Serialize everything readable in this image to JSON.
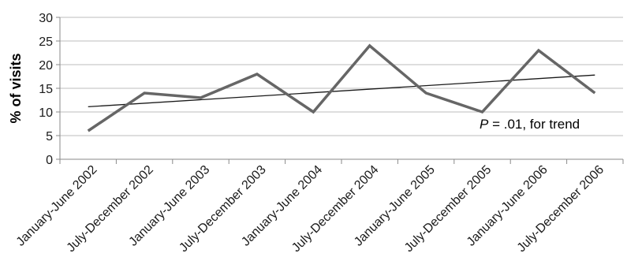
{
  "chart_data": {
    "type": "line",
    "title": "",
    "xlabel": "",
    "ylabel": "% of visits",
    "ylim": [
      0,
      30
    ],
    "yticks": [
      0,
      5,
      10,
      15,
      20,
      25,
      30
    ],
    "grid": "horizontal",
    "legend": "none",
    "categories": [
      "January-June 2002",
      "July-December 2002",
      "January-June 2003",
      "July-December 2003",
      "January-June 2004",
      "July-December 2004",
      "January-June 2005",
      "July-December 2005",
      "January-June 2006",
      "July-December 2006"
    ],
    "series": [
      {
        "values": [
          6,
          14,
          13,
          18,
          10,
          24,
          14,
          10,
          23,
          14
        ],
        "color": "#666666"
      }
    ],
    "trendline": {
      "start": 11.1,
      "end": 17.8,
      "color": "#1a1a1a"
    },
    "annotation": {
      "italic": "P",
      "text": " = .01, for trend"
    }
  }
}
